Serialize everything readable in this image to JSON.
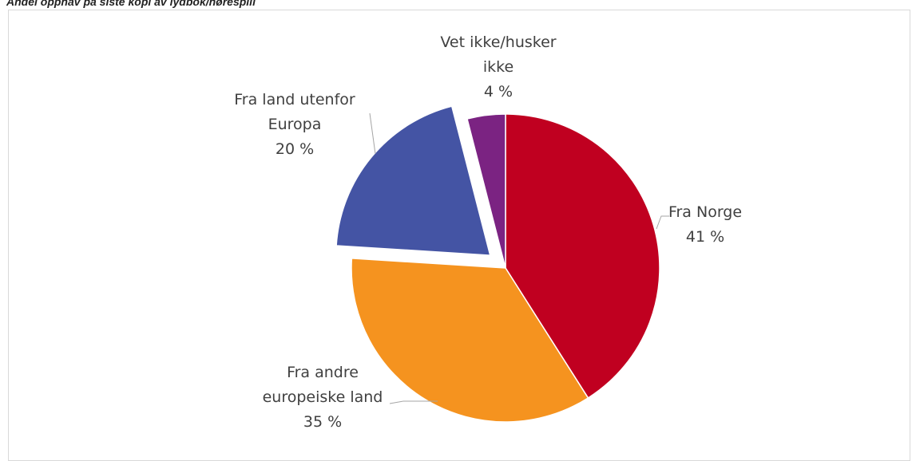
{
  "chart_data": {
    "type": "pie",
    "title": "Andel opphav på siste kopi av lydbok/hørespill",
    "categories": [
      "Fra Norge",
      "Fra andre europeiske land",
      "Fra land utenfor Europa",
      "Vet ikke/husker ikke"
    ],
    "values": [
      41,
      35,
      20,
      4
    ],
    "value_labels": [
      "41 %",
      "35 %",
      "20 %",
      "4 %"
    ],
    "colors": [
      "#c00020",
      "#f5931f",
      "#4454a4",
      "#7b2382"
    ],
    "exploded": [
      false,
      false,
      true,
      false
    ]
  }
}
